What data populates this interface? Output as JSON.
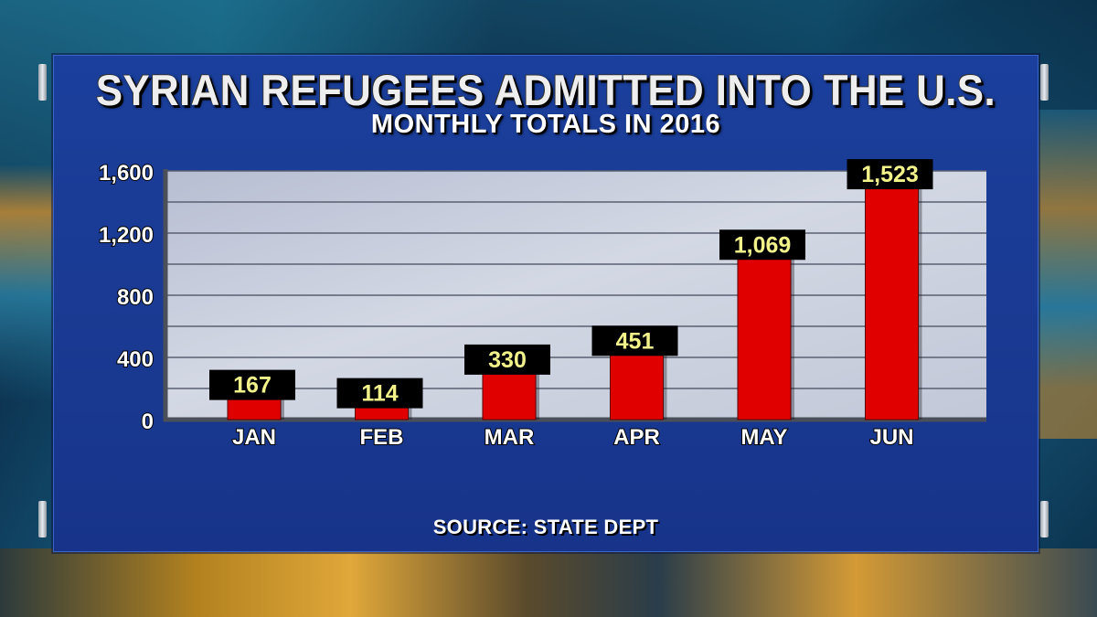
{
  "chart_data": {
    "type": "bar",
    "title": "SYRIAN REFUGEES ADMITTED INTO THE U.S.",
    "subtitle": "MONTHLY TOTALS IN 2016",
    "categories": [
      "JAN",
      "FEB",
      "MAR",
      "APR",
      "MAY",
      "JUN"
    ],
    "values": [
      167,
      114,
      330,
      451,
      1069,
      1523
    ],
    "value_labels": [
      "167",
      "114",
      "330",
      "451",
      "1,069",
      "1,523"
    ],
    "ylim": [
      0,
      1600
    ],
    "yticks": [
      0,
      400,
      800,
      1200,
      1600
    ],
    "ytick_labels": [
      "0",
      "400",
      "800",
      "1,200",
      "1,600"
    ],
    "grid": true,
    "source": "SOURCE: STATE DEPT",
    "colors": {
      "bar": "#e00000",
      "plot_bg": "#c8cedd",
      "label_box": "#000000",
      "label_text": "#f2f28a",
      "panel": "#1a3a93"
    }
  }
}
